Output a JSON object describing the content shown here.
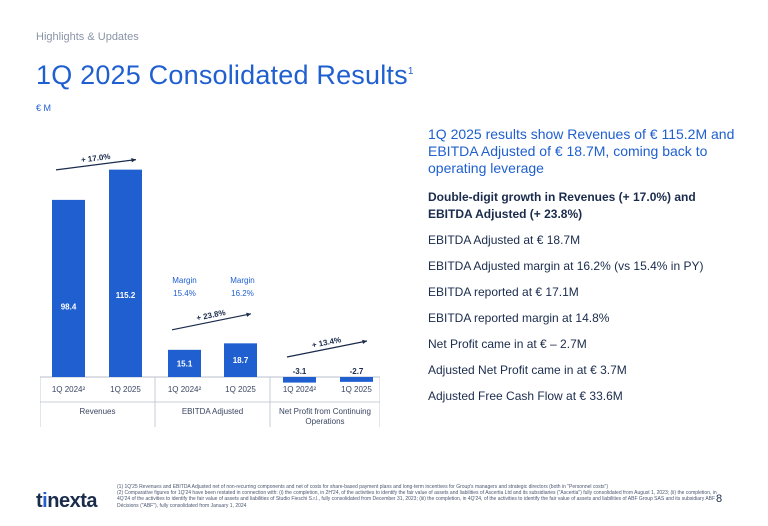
{
  "section_label": "Highlights & Updates",
  "title": "1Q 2025 Consolidated Results",
  "title_sup": "1",
  "unit": "€ M",
  "chart_data": {
    "type": "bar",
    "colors": {
      "bar": "#1f5fd0",
      "text": "#1a2b4c",
      "axis": "#b8bfcc"
    },
    "groups": [
      {
        "name": "Revenues",
        "categories": [
          "1Q 2024²",
          "1Q 2025"
        ],
        "values": [
          98.4,
          115.2
        ],
        "labels": [
          "98.4",
          "115.2"
        ],
        "growth": "+ 17.0%"
      },
      {
        "name": "EBITDA Adjusted",
        "categories": [
          "1Q 2024²",
          "1Q 2025"
        ],
        "values": [
          15.1,
          18.7
        ],
        "labels": [
          "15.1",
          "18.7"
        ],
        "growth": "+ 23.8%",
        "margin_title": "Margin",
        "margins": [
          "15.4%",
          "16.2%"
        ]
      },
      {
        "name": "Net Profit from Continuing Operations",
        "name_lines": [
          "Net Profit from Continuing",
          "Operations"
        ],
        "categories": [
          "1Q 2024²",
          "1Q 2025"
        ],
        "values": [
          -3.1,
          -2.7
        ],
        "labels": [
          "-3.1",
          "-2.7"
        ],
        "growth": "+ 13.4%"
      }
    ]
  },
  "headline": "1Q 2025 results show Revenues of € 115.2M and EBITDA Adjusted of € 18.7M, coming back to operating leverage",
  "key_points_bold": "Double-digit growth in Revenues (+ 17.0%) and EBITDA Adjusted (+ 23.8%)",
  "key_points": [
    "EBITDA Adjusted at € 18.7M",
    "EBITDA Adjusted margin at 16.2% (vs 15.4% in PY)",
    "EBITDA reported at € 17.1M",
    "EBITDA reported margin at 14.8%",
    "Net Profit came in at € – 2.7M",
    "Adjusted Net Profit came in at € 3.7M",
    "Adjusted Free Cash Flow at € 33.6M"
  ],
  "footnotes": [
    "(1)  1Q'25 Revenues and EBITDA Adjusted net of non-recurring components and net of costs for share-based payment plans and long-term incentives for Group's managers and strategic directors (both in \"Personnel costs\")",
    "(2)  Comparative figures for 1Q'24 have been restated in connection with: (i) the completion, in 2H'24, of the activities to identify the fair value of assets and liabilities of Ascertia Ltd and its subsidiaries (\"Ascertia\") fully consolidated from August 1, 2023; (ii) the completion, in 4Q'24 of the activities to identify the fair value of assets and liabilities of Studio Fieschi S.r.l., fully consolidated from December 31, 2023; (iii) the completion, in 4Q'24, of the activities to identify the fair value of assets and liabilities of ABF Group SAS and its subsidiary ABF Décisions (\"ABF\"), fully consolidated from January 1, 2024"
  ],
  "logo_text": "tinexta",
  "page_number": "8"
}
